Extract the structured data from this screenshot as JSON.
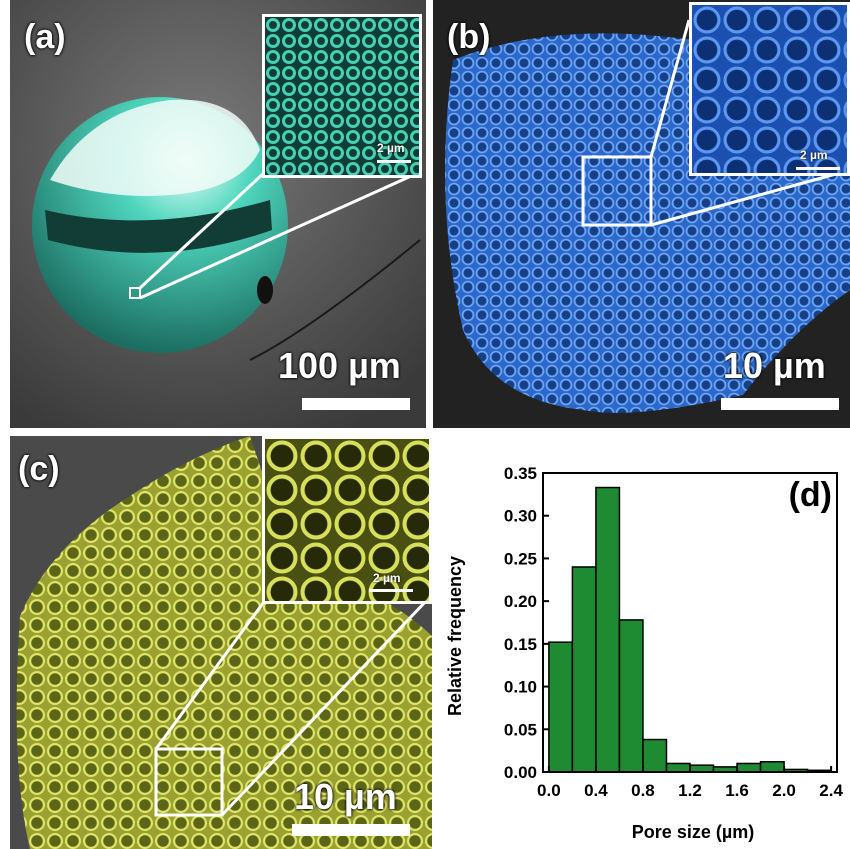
{
  "panels": {
    "a": {
      "label": "(a)",
      "scale_main": "100 µm",
      "scale_inset": "2 µm",
      "tint": "#3fc9b0"
    },
    "b": {
      "label": "(b)",
      "scale_main": "10 µm",
      "scale_inset": "2 µm",
      "tint": "#3a7fe0"
    },
    "c": {
      "label": "(c)",
      "scale_main": "10 µm",
      "scale_inset": "2 µm",
      "tint": "#d6dc52"
    }
  },
  "chart_data": {
    "type": "bar",
    "label": "(d)",
    "xlabel": "Pore size (µm)",
    "ylabel": "Relative frequency",
    "xlim": [
      -0.05,
      2.45
    ],
    "ylim": [
      0,
      0.35
    ],
    "xticks": [
      "0.0",
      "0.4",
      "0.8",
      "1.2",
      "1.6",
      "2.0",
      "2.4"
    ],
    "xtick_values": [
      0.0,
      0.4,
      0.8,
      1.2,
      1.6,
      2.0,
      2.4
    ],
    "yticks": [
      "0.00",
      "0.05",
      "0.10",
      "0.15",
      "0.20",
      "0.25",
      "0.30",
      "0.35"
    ],
    "ytick_values": [
      0,
      0.05,
      0.1,
      0.15,
      0.2,
      0.25,
      0.3,
      0.35
    ],
    "bin_width": 0.2,
    "bin_starts": [
      0.0,
      0.2,
      0.4,
      0.6,
      0.8,
      1.0,
      1.2,
      1.4,
      1.6,
      1.8,
      2.0,
      2.2
    ],
    "values": [
      0.152,
      0.24,
      0.333,
      0.178,
      0.038,
      0.01,
      0.008,
      0.006,
      0.01,
      0.012,
      0.003,
      0.002
    ],
    "bar_color": "#1e8b32"
  }
}
